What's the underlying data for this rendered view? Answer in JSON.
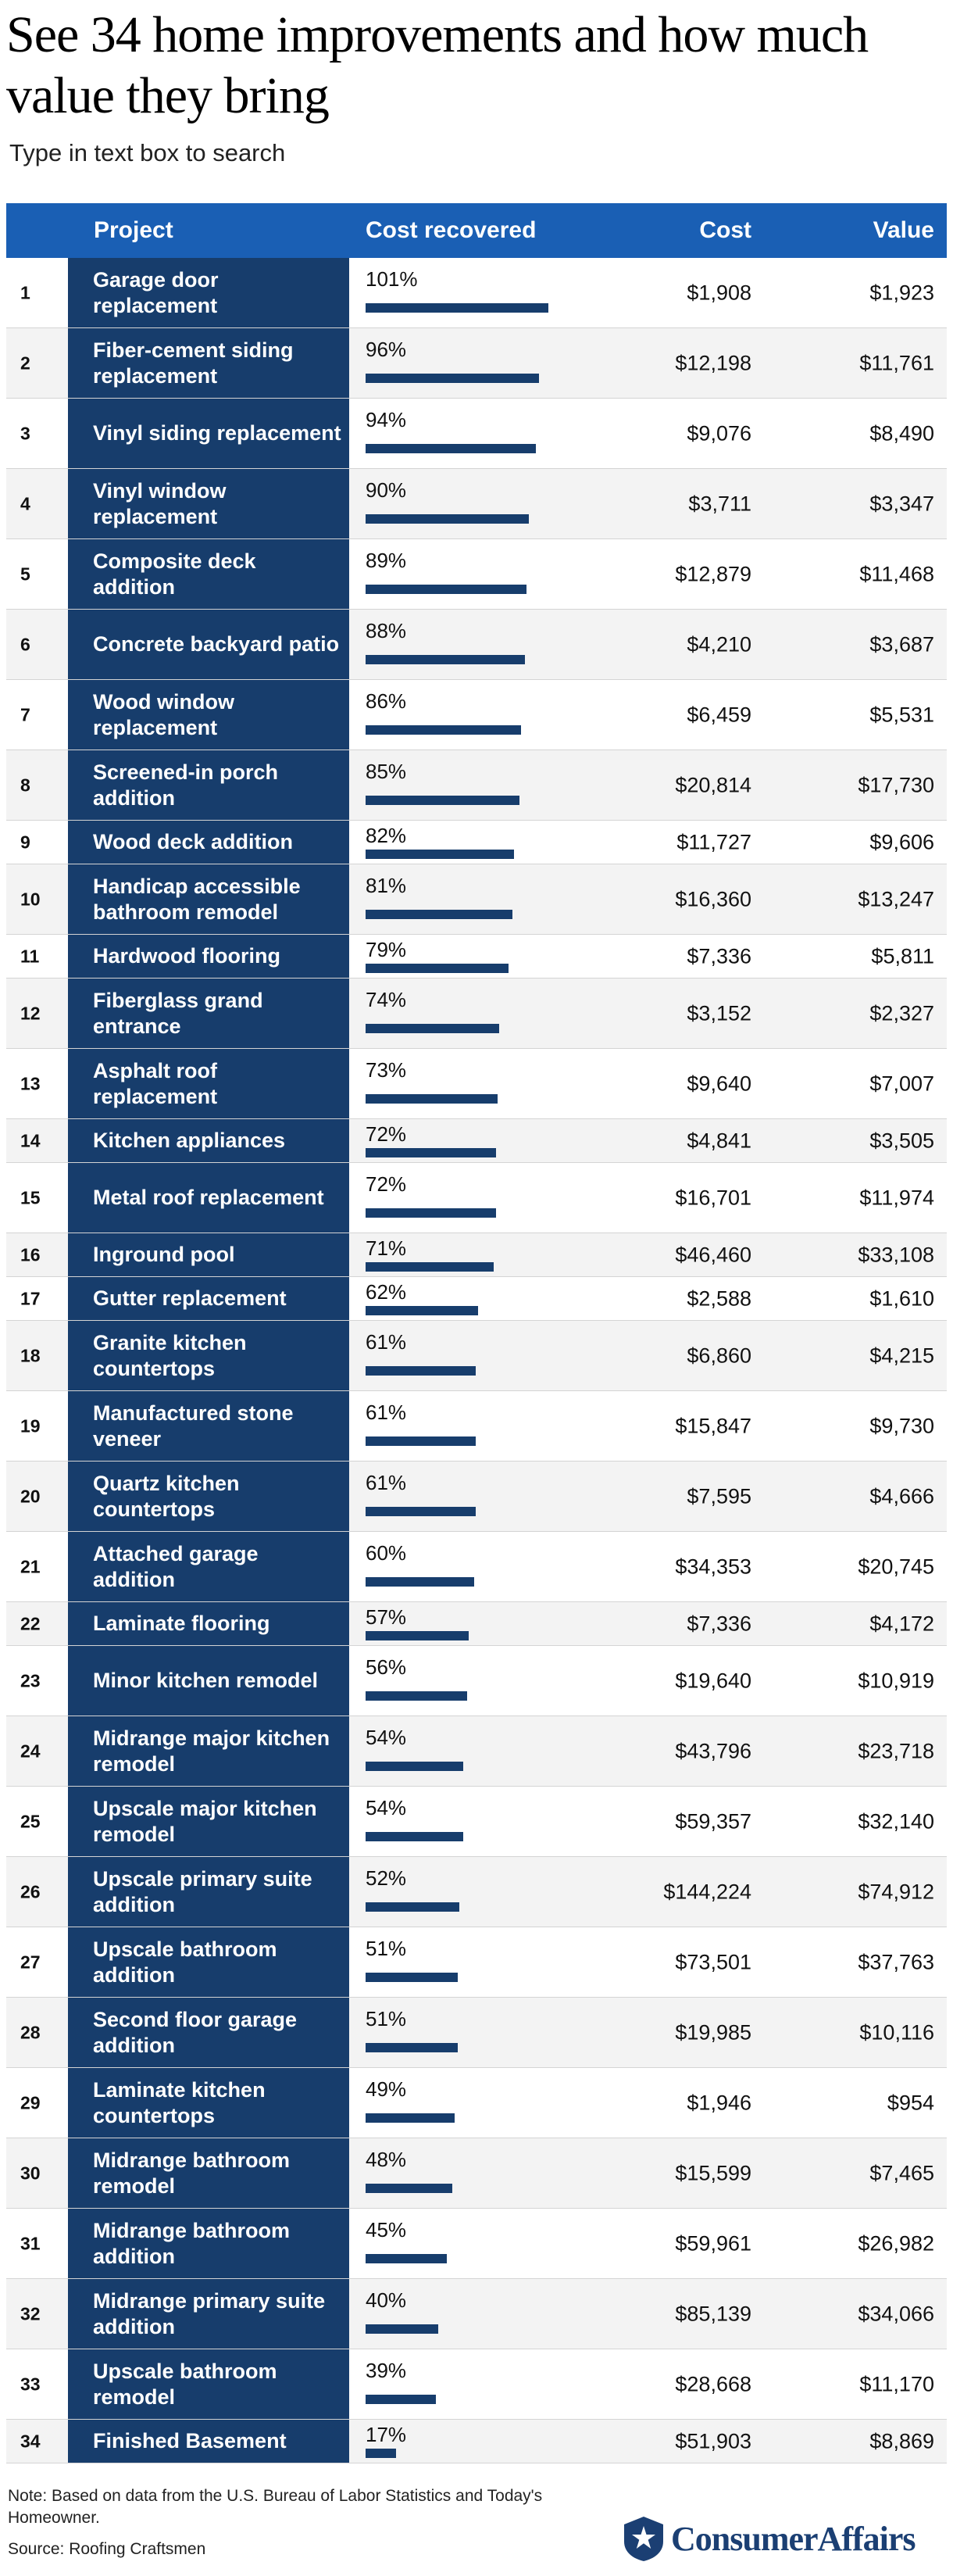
{
  "title": "See 34 home improvements and how much value they bring",
  "subtitle": "Type in text box to search",
  "colors": {
    "header": "#1a5fb4",
    "project_cell": "#173d6c",
    "bar": "#173d6c"
  },
  "headers": {
    "project": "Project",
    "cost_recovered": "Cost recovered",
    "cost": "Cost",
    "value": "Value"
  },
  "chart_data": {
    "type": "table",
    "columns": [
      "",
      "Project",
      "Cost recovered",
      "Cost",
      "Value"
    ],
    "rows": [
      {
        "rank": "1",
        "project": "Garage door replacement",
        "recovered": 101,
        "recovered_label": "101%",
        "cost": "$1,908",
        "value": "$1,923"
      },
      {
        "rank": "2",
        "project": "Fiber-cement siding replacement",
        "recovered": 96,
        "recovered_label": "96%",
        "cost": "$12,198",
        "value": "$11,761"
      },
      {
        "rank": "3",
        "project": "Vinyl siding replacement",
        "recovered": 94,
        "recovered_label": "94%",
        "cost": "$9,076",
        "value": "$8,490"
      },
      {
        "rank": "4",
        "project": "Vinyl window replacement",
        "recovered": 90,
        "recovered_label": "90%",
        "cost": "$3,711",
        "value": "$3,347"
      },
      {
        "rank": "5",
        "project": "Composite deck addition",
        "recovered": 89,
        "recovered_label": "89%",
        "cost": "$12,879",
        "value": "$11,468"
      },
      {
        "rank": "6",
        "project": "Concrete backyard patio",
        "recovered": 88,
        "recovered_label": "88%",
        "cost": "$4,210",
        "value": "$3,687"
      },
      {
        "rank": "7",
        "project": "Wood window replacement",
        "recovered": 86,
        "recovered_label": "86%",
        "cost": "$6,459",
        "value": "$5,531"
      },
      {
        "rank": "8",
        "project": "Screened-in porch addition",
        "recovered": 85,
        "recovered_label": "85%",
        "cost": "$20,814",
        "value": "$17,730"
      },
      {
        "rank": "9",
        "project": "Wood deck addition",
        "recovered": 82,
        "recovered_label": "82%",
        "cost": "$11,727",
        "value": "$9,606"
      },
      {
        "rank": "10",
        "project": "Handicap accessible bathroom remodel",
        "recovered": 81,
        "recovered_label": "81%",
        "cost": "$16,360",
        "value": "$13,247"
      },
      {
        "rank": "11",
        "project": "Hardwood flooring",
        "recovered": 79,
        "recovered_label": "79%",
        "cost": "$7,336",
        "value": "$5,811"
      },
      {
        "rank": "12",
        "project": "Fiberglass grand entrance",
        "recovered": 74,
        "recovered_label": "74%",
        "cost": "$3,152",
        "value": "$2,327"
      },
      {
        "rank": "13",
        "project": "Asphalt roof replacement",
        "recovered": 73,
        "recovered_label": "73%",
        "cost": "$9,640",
        "value": "$7,007"
      },
      {
        "rank": "14",
        "project": "Kitchen appliances",
        "recovered": 72,
        "recovered_label": "72%",
        "cost": "$4,841",
        "value": "$3,505"
      },
      {
        "rank": "15",
        "project": "Metal roof replacement",
        "recovered": 72,
        "recovered_label": "72%",
        "cost": "$16,701",
        "value": "$11,974"
      },
      {
        "rank": "16",
        "project": "Inground pool",
        "recovered": 71,
        "recovered_label": "71%",
        "cost": "$46,460",
        "value": "$33,108"
      },
      {
        "rank": "17",
        "project": "Gutter replacement",
        "recovered": 62,
        "recovered_label": "62%",
        "cost": "$2,588",
        "value": "$1,610"
      },
      {
        "rank": "18",
        "project": "Granite kitchen countertops",
        "recovered": 61,
        "recovered_label": "61%",
        "cost": "$6,860",
        "value": "$4,215"
      },
      {
        "rank": "19",
        "project": "Manufactured stone veneer",
        "recovered": 61,
        "recovered_label": "61%",
        "cost": "$15,847",
        "value": "$9,730"
      },
      {
        "rank": "20",
        "project": "Quartz kitchen countertops",
        "recovered": 61,
        "recovered_label": "61%",
        "cost": "$7,595",
        "value": "$4,666"
      },
      {
        "rank": "21",
        "project": "Attached garage addition",
        "recovered": 60,
        "recovered_label": "60%",
        "cost": "$34,353",
        "value": "$20,745"
      },
      {
        "rank": "22",
        "project": "Laminate flooring",
        "recovered": 57,
        "recovered_label": "57%",
        "cost": "$7,336",
        "value": "$4,172"
      },
      {
        "rank": "23",
        "project": "Minor kitchen remodel",
        "recovered": 56,
        "recovered_label": "56%",
        "cost": "$19,640",
        "value": "$10,919"
      },
      {
        "rank": "24",
        "project": "Midrange major kitchen remodel",
        "recovered": 54,
        "recovered_label": "54%",
        "cost": "$43,796",
        "value": "$23,718"
      },
      {
        "rank": "25",
        "project": "Upscale major kitchen remodel",
        "recovered": 54,
        "recovered_label": "54%",
        "cost": "$59,357",
        "value": "$32,140"
      },
      {
        "rank": "26",
        "project": "Upscale primary suite addition",
        "recovered": 52,
        "recovered_label": "52%",
        "cost": "$144,224",
        "value": "$74,912"
      },
      {
        "rank": "27",
        "project": "Upscale bathroom addition",
        "recovered": 51,
        "recovered_label": "51%",
        "cost": "$73,501",
        "value": "$37,763"
      },
      {
        "rank": "28",
        "project": "Second floor garage addition",
        "recovered": 51,
        "recovered_label": "51%",
        "cost": "$19,985",
        "value": "$10,116"
      },
      {
        "rank": "29",
        "project": "Laminate kitchen countertops",
        "recovered": 49,
        "recovered_label": "49%",
        "cost": "$1,946",
        "value": "$954"
      },
      {
        "rank": "30",
        "project": "Midrange bathroom remodel",
        "recovered": 48,
        "recovered_label": "48%",
        "cost": "$15,599",
        "value": "$7,465"
      },
      {
        "rank": "31",
        "project": "Midrange bathroom addition",
        "recovered": 45,
        "recovered_label": "45%",
        "cost": "$59,961",
        "value": "$26,982"
      },
      {
        "rank": "32",
        "project": "Midrange primary suite addition",
        "recovered": 40,
        "recovered_label": "40%",
        "cost": "$85,139",
        "value": "$34,066"
      },
      {
        "rank": "33",
        "project": "Upscale bathroom remodel",
        "recovered": 39,
        "recovered_label": "39%",
        "cost": "$28,668",
        "value": "$11,170"
      },
      {
        "rank": "34",
        "project": "Finished Basement",
        "recovered": 17,
        "recovered_label": "17%",
        "cost": "$51,903",
        "value": "$8,869"
      }
    ]
  },
  "note": "Note: Based on data from the U.S. Bureau of Labor Statistics and Today's Homeowner.",
  "source": "Source: Roofing Craftsmen",
  "logo": {
    "text": "ConsumerAffairs",
    "icon": "star-shield-icon"
  }
}
